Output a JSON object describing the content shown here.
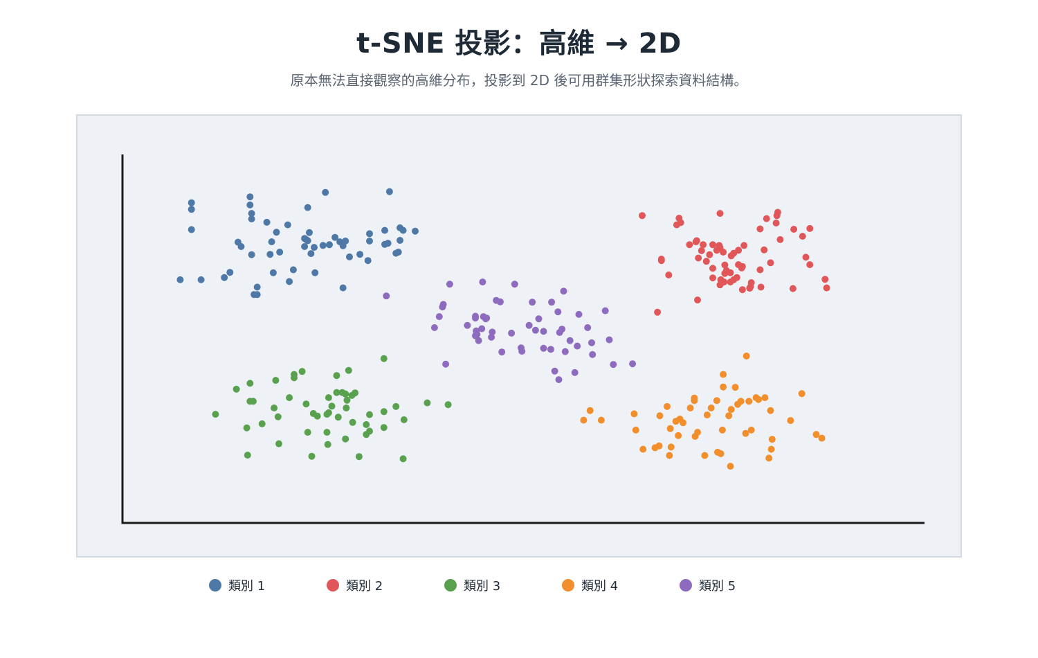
{
  "title": "t-SNE 投影：高維 → 2D",
  "subtitle": "原本無法直接觀察的高維分布，投影到 2D 後可用群集形狀探索資料結構。",
  "chart_data": {
    "type": "scatter",
    "title": "t-SNE 投影：高維 → 2D",
    "subtitle": "原本無法直接觀察的高維分布，投影到 2D 後可用群集形狀探索資料結構。",
    "xlabel": "",
    "ylabel": "",
    "xlim": [
      0,
      100
    ],
    "ylim": [
      0,
      100
    ],
    "grid": false,
    "legend_position": "bottom",
    "series": [
      {
        "name": "類別 1",
        "color": "#4e79a7",
        "points": [
          [
            7.2,
            66.0
          ],
          [
            8.6,
            86.9
          ],
          [
            8.6,
            85.1
          ],
          [
            8.6,
            79.6
          ],
          [
            9.8,
            66.0
          ],
          [
            12.7,
            66.6
          ],
          [
            13.4,
            68.0
          ],
          [
            14.4,
            76.2
          ],
          [
            14.8,
            75.0
          ],
          [
            15.9,
            86.3
          ],
          [
            15.9,
            88.5
          ],
          [
            16.1,
            72.8
          ],
          [
            16.1,
            84.0
          ],
          [
            16.1,
            82.5
          ],
          [
            16.4,
            62.0
          ],
          [
            16.8,
            64.0
          ],
          [
            16.8,
            62.0
          ],
          [
            18.0,
            81.6
          ],
          [
            18.4,
            72.9
          ],
          [
            18.6,
            76.3
          ],
          [
            18.8,
            67.9
          ],
          [
            19.2,
            78.9
          ],
          [
            19.6,
            73.5
          ],
          [
            20.8,
            65.5
          ],
          [
            20.6,
            80.9
          ],
          [
            21.3,
            68.7
          ],
          [
            22.7,
            77.2
          ],
          [
            22.7,
            75.0
          ],
          [
            23.1,
            85.6
          ],
          [
            22.9,
            76.9
          ],
          [
            23.1,
            76.6
          ],
          [
            23.3,
            78.8
          ],
          [
            23.5,
            73.1
          ],
          [
            23.9,
            74.8
          ],
          [
            24.0,
            67.9
          ],
          [
            25.0,
            75.3
          ],
          [
            25.3,
            89.7
          ],
          [
            25.8,
            75.5
          ],
          [
            26.5,
            77.5
          ],
          [
            27.1,
            76.3
          ],
          [
            27.5,
            75.2
          ],
          [
            27.5,
            63.8
          ],
          [
            27.8,
            76.5
          ],
          [
            28.3,
            72.2
          ],
          [
            29.6,
            72.9
          ],
          [
            30.6,
            71.2
          ],
          [
            30.8,
            76.5
          ],
          [
            30.8,
            78.5
          ],
          [
            32.7,
            79.4
          ],
          [
            33.3,
            89.9
          ],
          [
            32.7,
            75.6
          ],
          [
            33.1,
            75.9
          ],
          [
            34.4,
            73.5
          ],
          [
            34.6,
            76.7
          ],
          [
            34.6,
            80.1
          ],
          [
            34.1,
            73.2
          ],
          [
            35.0,
            79.4
          ],
          [
            36.5,
            79.2
          ]
        ]
      },
      {
        "name": "類別 2",
        "color": "#e15759",
        "points": [
          [
            64.8,
            83.4
          ],
          [
            66.7,
            57.2
          ],
          [
            67.2,
            71.6
          ],
          [
            67.2,
            71.2
          ],
          [
            68.1,
            67.3
          ],
          [
            69.1,
            80.9
          ],
          [
            69.6,
            81.5
          ],
          [
            69.4,
            82.7
          ],
          [
            70.7,
            75.5
          ],
          [
            71.5,
            76.3
          ],
          [
            71.7,
            60.5
          ],
          [
            71.8,
            71.9
          ],
          [
            71.6,
            76.6
          ],
          [
            72.2,
            73.9
          ],
          [
            72.4,
            75.5
          ],
          [
            72.8,
            71.0
          ],
          [
            73.6,
            69.1
          ],
          [
            73.2,
            72.8
          ],
          [
            73.6,
            75.5
          ],
          [
            73.6,
            66.5
          ],
          [
            74.1,
            74.0
          ],
          [
            74.4,
            75.3
          ],
          [
            74.5,
            64.6
          ],
          [
            74.5,
            84.0
          ],
          [
            74.6,
            66.0
          ],
          [
            74.5,
            74.7
          ],
          [
            74.9,
            73.5
          ],
          [
            75.1,
            70.0
          ],
          [
            75.0,
            65.4
          ],
          [
            75.3,
            68.5
          ],
          [
            75.1,
            67.7
          ],
          [
            75.8,
            67.9
          ],
          [
            75.9,
            72.5
          ],
          [
            76.2,
            73.2
          ],
          [
            75.8,
            65.4
          ],
          [
            76.8,
            70.1
          ],
          [
            76.6,
            66.6
          ],
          [
            76.2,
            66.0
          ],
          [
            77.3,
            69.6
          ],
          [
            76.8,
            74.0
          ],
          [
            77.3,
            63.3
          ],
          [
            77.2,
            69.2
          ],
          [
            77.5,
            75.3
          ],
          [
            78.3,
            64.1
          ],
          [
            78.2,
            63.7
          ],
          [
            79.5,
            79.8
          ],
          [
            78.4,
            65.2
          ],
          [
            79.6,
            64.0
          ],
          [
            80.8,
            70.6
          ],
          [
            79.5,
            68.7
          ],
          [
            80.0,
            74.1
          ],
          [
            80.3,
            82.6
          ],
          [
            81.5,
            81.4
          ],
          [
            81.6,
            83.4
          ],
          [
            82.0,
            76.9
          ],
          [
            83.7,
            79.7
          ],
          [
            81.7,
            84.3
          ],
          [
            83.6,
            63.6
          ],
          [
            84.8,
            77.8
          ],
          [
            85.7,
            70.1
          ],
          [
            85.2,
            72.1
          ],
          [
            85.7,
            79.9
          ],
          [
            87.6,
            66.1
          ],
          [
            87.8,
            63.8
          ]
        ]
      },
      {
        "name": "類別 3",
        "color": "#59a14f",
        "points": [
          [
            11.6,
            29.5
          ],
          [
            14.2,
            36.3
          ],
          [
            15.5,
            25.8
          ],
          [
            15.6,
            18.4
          ],
          [
            15.9,
            37.9
          ],
          [
            15.9,
            33.0
          ],
          [
            16.3,
            33.0
          ],
          [
            17.4,
            26.9
          ],
          [
            18.9,
            31.2
          ],
          [
            19.1,
            38.7
          ],
          [
            19.5,
            21.5
          ],
          [
            19.4,
            28.8
          ],
          [
            20.8,
            34.0
          ],
          [
            21.4,
            39.4
          ],
          [
            21.4,
            40.3
          ],
          [
            22.4,
            41.1
          ],
          [
            22.9,
            32.3
          ],
          [
            23.1,
            24.6
          ],
          [
            23.6,
            18.1
          ],
          [
            23.8,
            29.7
          ],
          [
            24.3,
            29.0
          ],
          [
            25.6,
            21.3
          ],
          [
            25.5,
            24.6
          ],
          [
            25.7,
            34.0
          ],
          [
            25.7,
            29.9
          ],
          [
            25.5,
            29.5
          ],
          [
            26.1,
            31.7
          ],
          [
            26.7,
            40.0
          ],
          [
            26.7,
            35.4
          ],
          [
            26.9,
            28.7
          ],
          [
            27.8,
            22.8
          ],
          [
            28.2,
            41.4
          ],
          [
            27.8,
            35.0
          ],
          [
            27.4,
            35.4
          ],
          [
            27.9,
            31.2
          ],
          [
            28.0,
            33.3
          ],
          [
            28.6,
            34.6
          ],
          [
            29.0,
            35.3
          ],
          [
            28.7,
            27.3
          ],
          [
            29.5,
            18.0
          ],
          [
            30.4,
            26.7
          ],
          [
            30.4,
            24.0
          ],
          [
            30.8,
            29.4
          ],
          [
            30.8,
            24.9
          ],
          [
            32.6,
            25.9
          ],
          [
            32.6,
            30.2
          ],
          [
            32.6,
            44.6
          ],
          [
            34.1,
            31.6
          ],
          [
            35.0,
            17.4
          ],
          [
            35.1,
            28.0
          ],
          [
            38.0,
            32.6
          ],
          [
            40.6,
            32.1
          ]
        ]
      },
      {
        "name": "類別 4",
        "color": "#f28e2b",
        "points": [
          [
            57.5,
            27.9
          ],
          [
            58.3,
            30.5
          ],
          [
            59.7,
            27.9
          ],
          [
            63.8,
            29.6
          ],
          [
            64.0,
            25.2
          ],
          [
            64.9,
            20.0
          ],
          [
            66.4,
            20.4
          ],
          [
            66.9,
            20.9
          ],
          [
            67.0,
            29.1
          ],
          [
            67.9,
            31.6
          ],
          [
            68.2,
            18.3
          ],
          [
            68.4,
            20.6
          ],
          [
            68.3,
            25.6
          ],
          [
            69.0,
            27.6
          ],
          [
            69.3,
            23.7
          ],
          [
            69.5,
            28.2
          ],
          [
            69.9,
            27.2
          ],
          [
            70.8,
            31.2
          ],
          [
            71.3,
            33.2
          ],
          [
            71.3,
            33.9
          ],
          [
            71.4,
            23.5
          ],
          [
            71.7,
            24.6
          ],
          [
            72.6,
            18.3
          ],
          [
            72.9,
            29.3
          ],
          [
            73.4,
            31.2
          ],
          [
            74.1,
            33.2
          ],
          [
            74.2,
            19.2
          ],
          [
            74.6,
            18.8
          ],
          [
            74.8,
            25.2
          ],
          [
            74.9,
            40.3
          ],
          [
            74.9,
            36.9
          ],
          [
            75.6,
            29.1
          ],
          [
            75.9,
            30.8
          ],
          [
            75.8,
            15.4
          ],
          [
            76.4,
            36.8
          ],
          [
            77.8,
            45.3
          ],
          [
            76.7,
            32.2
          ],
          [
            77.1,
            33.0
          ],
          [
            78.1,
            33.0
          ],
          [
            78.4,
            25.2
          ],
          [
            77.7,
            24.3
          ],
          [
            79.0,
            34.0
          ],
          [
            79.3,
            33.5
          ],
          [
            80.1,
            34.0
          ],
          [
            80.8,
            30.5
          ],
          [
            81.0,
            22.7
          ],
          [
            80.9,
            20.0
          ],
          [
            80.6,
            17.6
          ],
          [
            83.3,
            27.8
          ],
          [
            84.7,
            35.1
          ],
          [
            86.5,
            24.0
          ],
          [
            87.2,
            23.0
          ]
        ]
      },
      {
        "name": "類別 5",
        "color": "#8e6bbf",
        "points": [
          [
            32.9,
            61.6
          ],
          [
            38.9,
            53.0
          ],
          [
            39.5,
            56.0
          ],
          [
            39.9,
            58.6
          ],
          [
            40.0,
            59.3
          ],
          [
            40.3,
            43.1
          ],
          [
            40.8,
            64.8
          ],
          [
            43.0,
            53.6
          ],
          [
            44.0,
            56.1
          ],
          [
            44.0,
            55.6
          ],
          [
            44.1,
            52.1
          ],
          [
            44.2,
            51.2
          ],
          [
            44.0,
            50.8
          ],
          [
            44.4,
            49.5
          ],
          [
            44.8,
            52.7
          ],
          [
            44.9,
            65.4
          ],
          [
            45.0,
            56.0
          ],
          [
            45.3,
            55.4
          ],
          [
            45.4,
            55.6
          ],
          [
            46.1,
            51.8
          ],
          [
            46.0,
            50.4
          ],
          [
            46.6,
            60.4
          ],
          [
            47.1,
            60.0
          ],
          [
            47.3,
            46.4
          ],
          [
            48.5,
            51.5
          ],
          [
            48.9,
            64.8
          ],
          [
            49.7,
            47.5
          ],
          [
            49.8,
            46.6
          ],
          [
            50.7,
            53.6
          ],
          [
            51.1,
            59.9
          ],
          [
            51.5,
            52.3
          ],
          [
            51.9,
            55.4
          ],
          [
            52.5,
            52.0
          ],
          [
            52.5,
            47.4
          ],
          [
            53.4,
            47.1
          ],
          [
            53.5,
            59.9
          ],
          [
            53.9,
            41.2
          ],
          [
            54.3,
            57.3
          ],
          [
            54.5,
            51.7
          ],
          [
            54.8,
            52.6
          ],
          [
            54.4,
            38.9
          ],
          [
            55.0,
            62.9
          ],
          [
            55.2,
            46.5
          ],
          [
            55.8,
            49.5
          ],
          [
            56.4,
            40.8
          ],
          [
            56.7,
            48.0
          ],
          [
            56.9,
            56.6
          ],
          [
            58.0,
            53.0
          ],
          [
            58.5,
            48.9
          ],
          [
            58.6,
            45.7
          ],
          [
            60.2,
            57.6
          ],
          [
            60.7,
            49.7
          ],
          [
            61.2,
            43.0
          ],
          [
            63.6,
            43.2
          ]
        ]
      }
    ]
  },
  "legend": [
    {
      "label": "類別 1",
      "color": "#4e79a7"
    },
    {
      "label": "類別 2",
      "color": "#e15759"
    },
    {
      "label": "類別 3",
      "color": "#59a14f"
    },
    {
      "label": "類別 4",
      "color": "#f28e2b"
    },
    {
      "label": "類別 5",
      "color": "#8e6bbf"
    }
  ]
}
